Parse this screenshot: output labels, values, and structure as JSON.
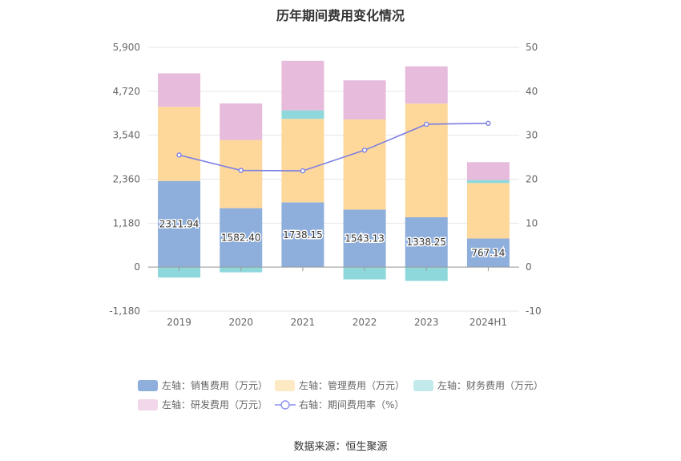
{
  "chart_data": {
    "type": "bar",
    "title": "历年期间费用变化情况",
    "categories": [
      "2019",
      "2020",
      "2021",
      "2022",
      "2023",
      "2024H1"
    ],
    "left_axis": {
      "ticks": [
        "-1,180",
        "0",
        "1,180",
        "2,360",
        "3,540",
        "4,720",
        "5,900"
      ],
      "min": -1180,
      "max": 5900
    },
    "right_axis": {
      "ticks": [
        "-10",
        "0",
        "10",
        "20",
        "30",
        "40",
        "50"
      ],
      "min": -10,
      "max": 50
    },
    "series": [
      {
        "name": "左轴：销售费用（万元）",
        "color": "#8eaedc",
        "values": [
          2311.94,
          1582.4,
          1738.15,
          1543.13,
          1338.25,
          767.14
        ],
        "labels": [
          "2311.94",
          "1582.40",
          "1738.15",
          "1543.13",
          "1338.25",
          "767.14"
        ]
      },
      {
        "name": "左轴：管理费用（万元）",
        "color": "#fed89a",
        "values": [
          1990,
          1830,
          2240,
          2420,
          3050,
          1490
        ]
      },
      {
        "name": "左轴：财务费用（万元）",
        "color": "#8ed8dc",
        "values": [
          -280,
          -140,
          230,
          -330,
          -370,
          80
        ]
      },
      {
        "name": "左轴：研发费用（万元）",
        "color": "#e7bbdb",
        "values": [
          900,
          980,
          1330,
          1050,
          1000,
          480
        ]
      },
      {
        "name": "右轴：期间费用率（%）",
        "color": "#7b7fe2",
        "axis": "right",
        "type": "line",
        "values": [
          25.5,
          22,
          21.9,
          26.6,
          32.5,
          32.7
        ]
      }
    ],
    "grid": true,
    "legend_position": "bottom"
  },
  "source_text": "数据来源：恒生聚源"
}
